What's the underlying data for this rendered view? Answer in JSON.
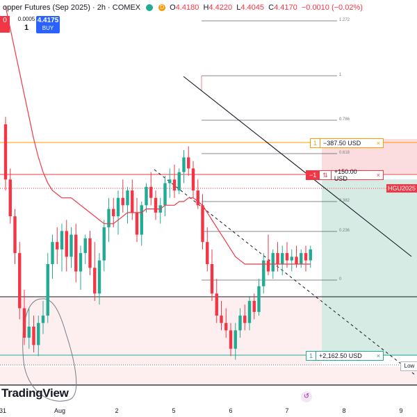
{
  "header": {
    "symbol_title": "opper Futures (Sep 2025)",
    "interval": "2h",
    "exchange": "COMEX",
    "status_icons": [
      "market-open-dot",
      "delayed-d-icon"
    ],
    "delayed_label": "D",
    "ohlc": {
      "o_label": "O",
      "o": "4.4180",
      "h_label": "H",
      "h": "4.4220",
      "l_label": "L",
      "l": "4.4045",
      "c_label": "C",
      "c": "4.4170",
      "change": "−0.0010 (−0.02%)"
    }
  },
  "trade_panel": {
    "sell_price": "0",
    "spread": "0.0005",
    "quantity": "1",
    "buy_price": "4.4175",
    "buy_label": "BUY"
  },
  "orders": {
    "take_profit": {
      "qty": "1",
      "pnl": "−387.50 USD",
      "close": "×"
    },
    "entry": {
      "qty": "−1",
      "icon_text": "⇅",
      "pnl": "+150.00 USD",
      "close": "×"
    },
    "stop_loss": {
      "qty": "1",
      "pnl": "+2,162.50 USD",
      "close": "×"
    }
  },
  "price_tag": "HGU2025",
  "low_tag": "Low",
  "fib_levels": [
    "1.272",
    "1",
    "0.786",
    "0.618",
    "0.382",
    "0.236",
    "0"
  ],
  "x_axis": [
    "31",
    "Aug",
    "2",
    "5",
    "6",
    "7",
    "8",
    "9"
  ],
  "brand": "TradingView",
  "colors": {
    "up": "#22ab94",
    "down": "#f23645",
    "ma": "#f23645",
    "take_profit_line": "#ff9800",
    "stop_zone": "#d6ebe4",
    "profit_zone": "#fbdde0"
  },
  "chart_data": {
    "type": "candlestick",
    "series": [
      {
        "name": "price",
        "candles": [
          [
            4.6,
            4.62,
            4.42,
            4.45
          ],
          [
            4.45,
            4.48,
            4.33,
            4.35
          ],
          [
            4.35,
            4.37,
            4.22,
            4.25
          ],
          [
            4.25,
            4.28,
            4.07,
            4.1
          ],
          [
            4.1,
            4.15,
            4.0,
            4.02
          ],
          [
            4.02,
            4.1,
            3.99,
            4.05
          ],
          [
            4.05,
            4.08,
            3.98,
            4.0
          ],
          [
            4.0,
            4.08,
            3.97,
            4.06
          ],
          [
            4.06,
            4.12,
            4.03,
            4.08
          ],
          [
            4.08,
            4.25,
            4.06,
            4.22
          ],
          [
            4.22,
            4.3,
            4.18,
            4.28
          ],
          [
            4.28,
            4.32,
            4.22,
            4.26
          ],
          [
            4.26,
            4.33,
            4.2,
            4.31
          ],
          [
            4.31,
            4.34,
            4.2,
            4.24
          ],
          [
            4.24,
            4.32,
            4.21,
            4.3
          ],
          [
            4.3,
            4.33,
            4.17,
            4.2
          ],
          [
            4.2,
            4.27,
            4.15,
            4.25
          ],
          [
            4.25,
            4.3,
            4.22,
            4.29
          ],
          [
            4.29,
            4.31,
            4.19,
            4.21
          ],
          [
            4.21,
            4.28,
            4.12,
            4.14
          ],
          [
            4.14,
            4.25,
            4.11,
            4.23
          ],
          [
            4.23,
            4.34,
            4.2,
            4.32
          ],
          [
            4.32,
            4.4,
            4.28,
            4.37
          ],
          [
            4.37,
            4.4,
            4.32,
            4.35
          ],
          [
            4.35,
            4.42,
            4.3,
            4.4
          ],
          [
            4.4,
            4.45,
            4.36,
            4.38
          ],
          [
            4.38,
            4.43,
            4.33,
            4.42
          ],
          [
            4.42,
            4.45,
            4.34,
            4.36
          ],
          [
            4.36,
            4.4,
            4.28,
            4.3
          ],
          [
            4.3,
            4.39,
            4.27,
            4.38
          ],
          [
            4.38,
            4.44,
            4.36,
            4.43
          ],
          [
            4.43,
            4.47,
            4.38,
            4.4
          ],
          [
            4.4,
            4.42,
            4.34,
            4.36
          ],
          [
            4.36,
            4.4,
            4.33,
            4.38
          ],
          [
            4.38,
            4.46,
            4.35,
            4.44
          ],
          [
            4.44,
            4.48,
            4.4,
            4.45
          ],
          [
            4.45,
            4.49,
            4.4,
            4.42
          ],
          [
            4.42,
            4.48,
            4.41,
            4.47
          ],
          [
            4.47,
            4.53,
            4.44,
            4.51
          ],
          [
            4.51,
            4.54,
            4.46,
            4.48
          ],
          [
            4.48,
            4.5,
            4.4,
            4.42
          ],
          [
            4.42,
            4.45,
            4.37,
            4.38
          ],
          [
            4.38,
            4.41,
            4.26,
            4.28
          ],
          [
            4.28,
            4.32,
            4.2,
            4.22
          ],
          [
            4.22,
            4.26,
            4.12,
            4.14
          ],
          [
            4.14,
            4.18,
            4.06,
            4.08
          ],
          [
            4.08,
            4.12,
            4.04,
            4.06
          ],
          [
            4.06,
            4.1,
            4.02,
            4.04
          ],
          [
            4.04,
            4.06,
            3.97,
            3.99
          ],
          [
            3.99,
            4.06,
            3.96,
            4.04
          ],
          [
            4.04,
            4.1,
            4.02,
            4.08
          ],
          [
            4.08,
            4.11,
            4.04,
            4.06
          ],
          [
            4.06,
            4.13,
            4.04,
            4.12
          ],
          [
            4.12,
            4.14,
            4.07,
            4.09
          ],
          [
            4.09,
            4.18,
            4.08,
            4.16
          ],
          [
            4.16,
            4.25,
            4.14,
            4.23
          ],
          [
            4.23,
            4.3,
            4.19,
            4.2
          ],
          [
            4.2,
            4.26,
            4.18,
            4.25
          ],
          [
            4.25,
            4.28,
            4.2,
            4.22
          ],
          [
            4.22,
            4.27,
            4.19,
            4.25
          ],
          [
            4.25,
            4.28,
            4.21,
            4.23
          ],
          [
            4.23,
            4.26,
            4.2,
            4.24
          ],
          [
            4.24,
            4.27,
            4.21,
            4.22
          ],
          [
            4.22,
            4.26,
            4.21,
            4.25
          ],
          [
            4.25,
            4.27,
            4.2,
            4.23
          ],
          [
            4.23,
            4.27,
            4.21,
            4.26
          ]
        ]
      },
      {
        "name": "ma",
        "values": [
          4.92,
          4.86,
          4.8,
          4.74,
          4.68,
          4.62,
          4.56,
          4.51,
          4.47,
          4.44,
          4.42,
          4.41,
          4.4,
          4.4,
          4.4,
          4.39,
          4.38,
          4.37,
          4.36,
          4.35,
          4.34,
          4.33,
          4.33,
          4.33,
          4.34,
          4.35,
          4.36,
          4.36,
          4.36,
          4.36,
          4.37,
          4.37,
          4.37,
          4.37,
          4.38,
          4.38,
          4.38,
          4.39,
          4.39,
          4.4,
          4.4,
          4.39,
          4.38,
          4.36,
          4.34,
          4.32,
          4.3,
          4.28,
          4.26,
          4.24,
          4.23,
          4.22,
          4.22,
          4.22,
          4.22,
          4.22,
          4.22,
          4.22,
          4.22,
          4.22,
          4.22,
          4.22,
          4.22,
          4.22,
          4.22,
          4.22
        ]
      }
    ],
    "x_labels": [
      "31",
      "Aug",
      "2",
      "5",
      "6",
      "7",
      "8",
      "9"
    ],
    "ylim": [
      3.88,
      4.9
    ],
    "grid": false
  }
}
